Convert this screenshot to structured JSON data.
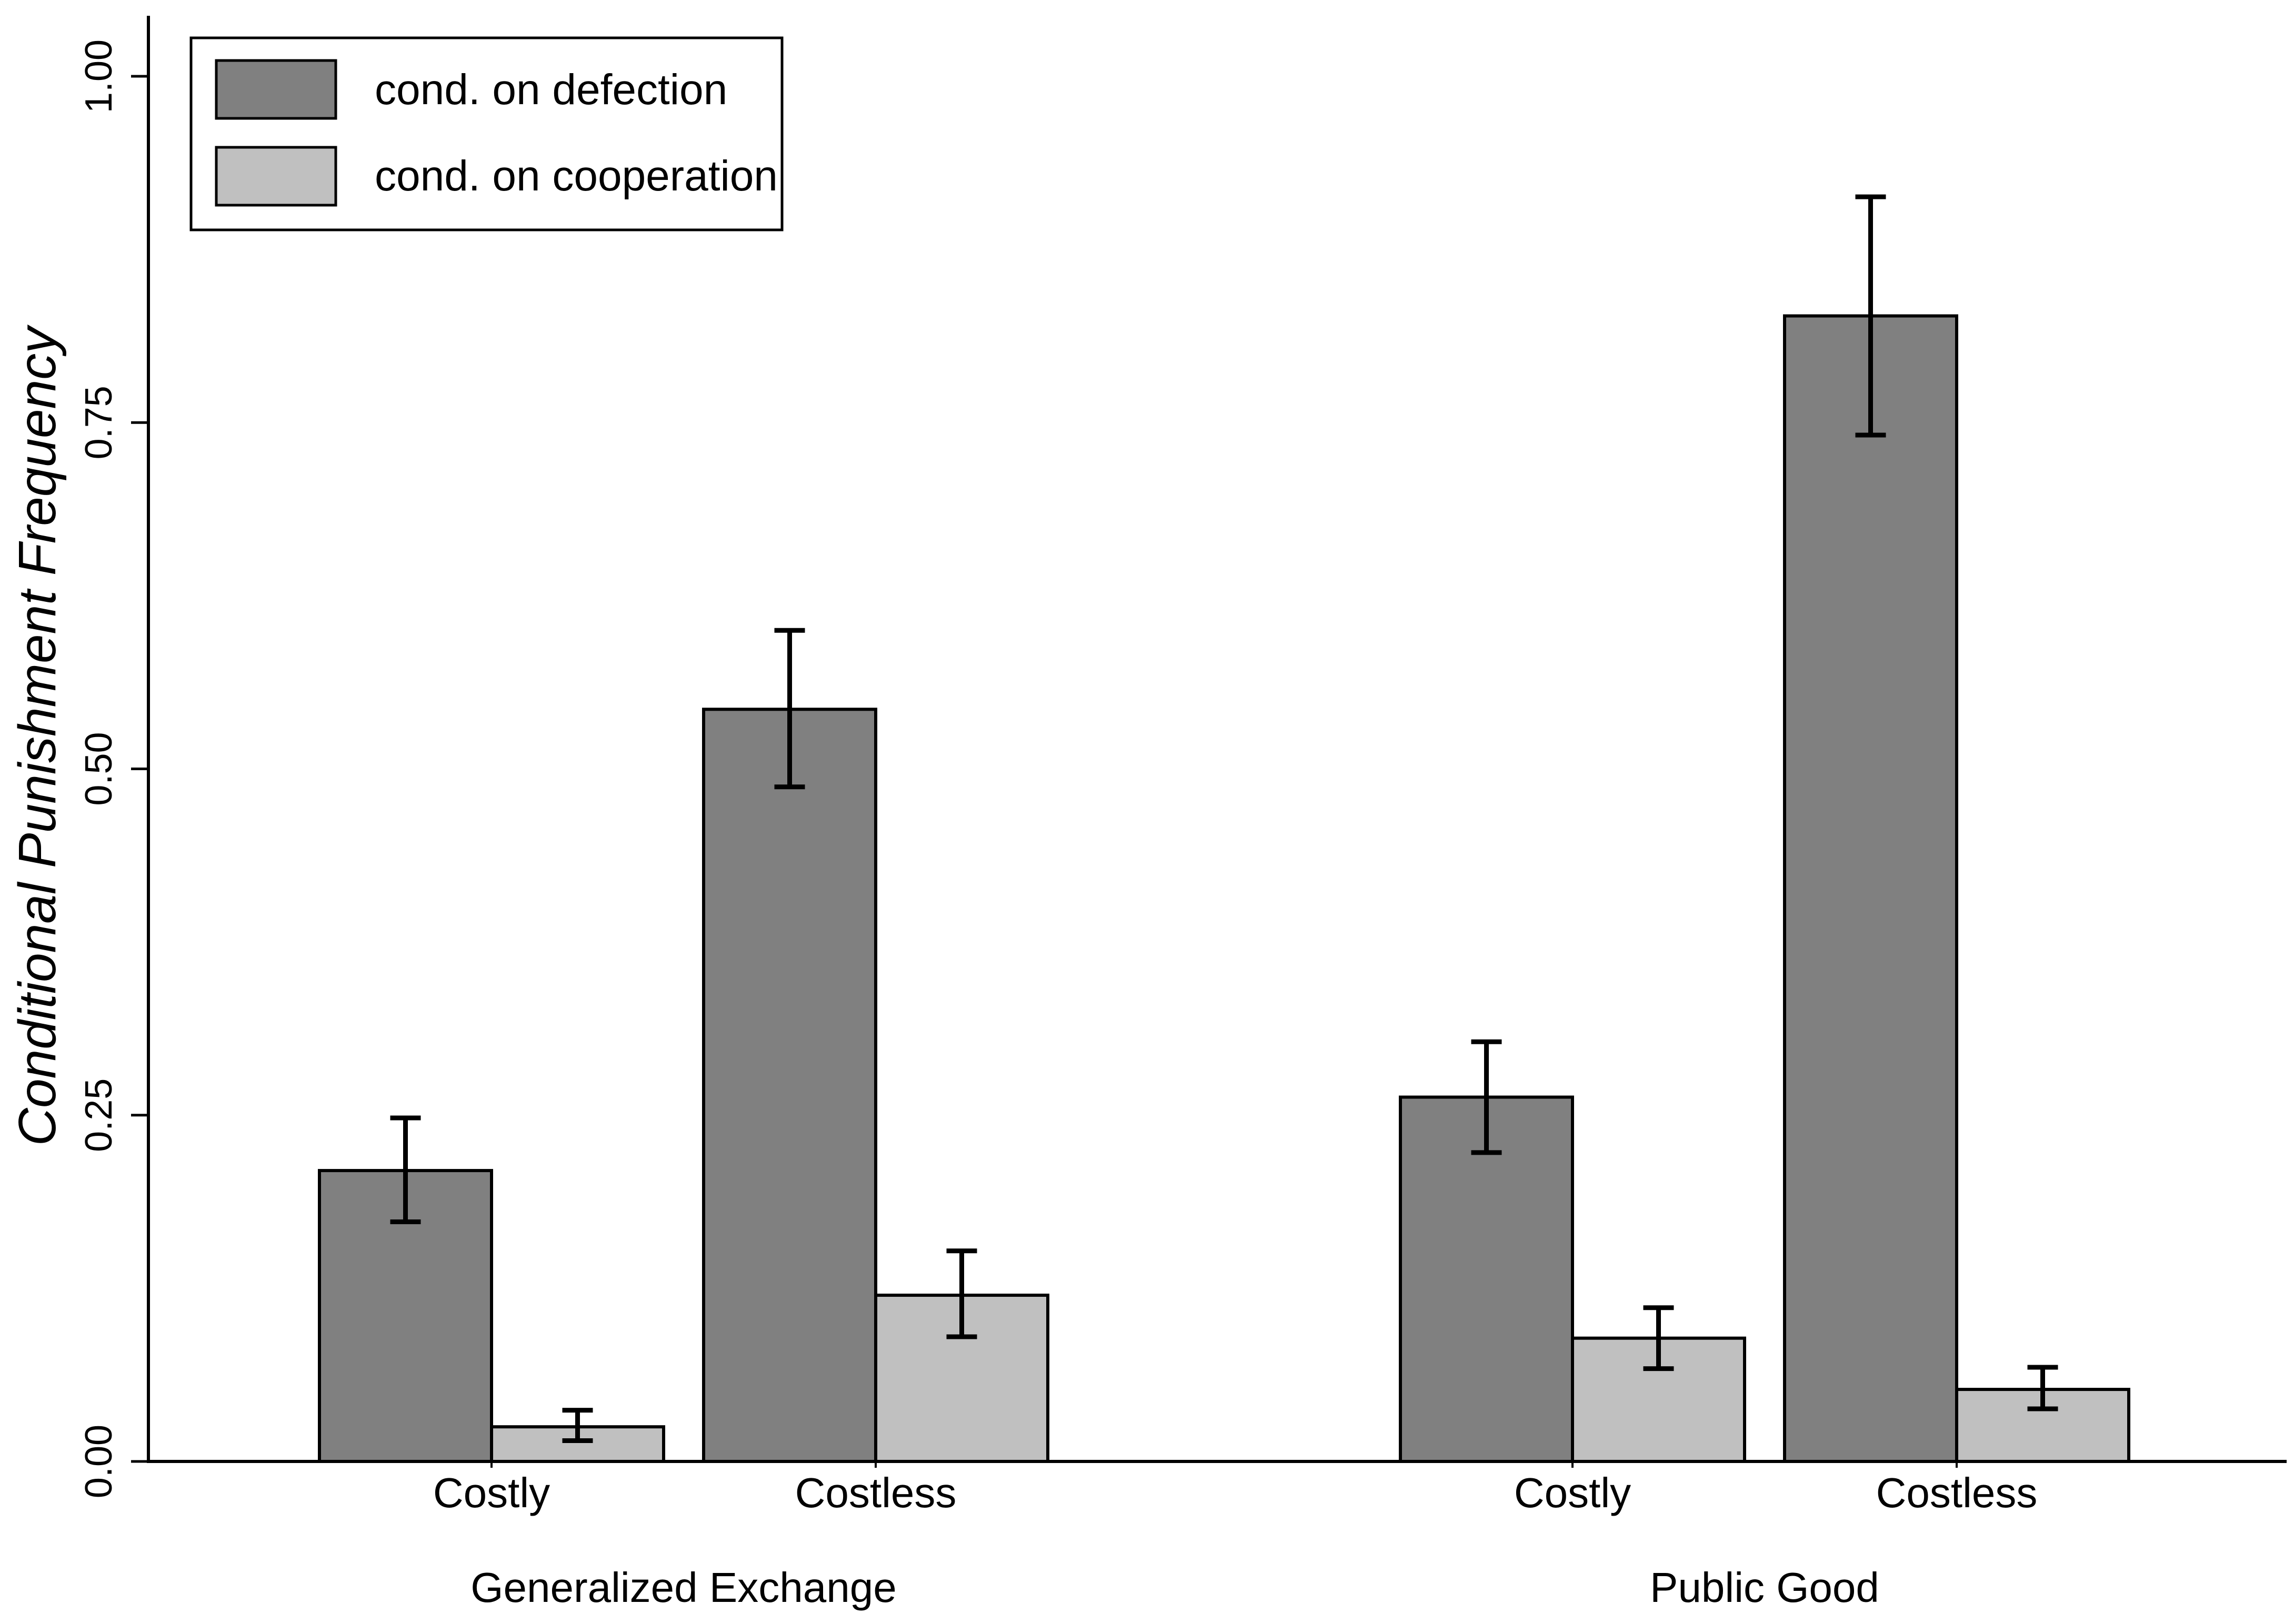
{
  "colors": {
    "defection": "#808080",
    "cooperation": "#c0c0c0",
    "axis": "#000000"
  },
  "chart_data": {
    "type": "bar",
    "title": "",
    "xlabel": "",
    "ylabel": "Conditional Punishment Frequency",
    "ylim": [
      0,
      1.0
    ],
    "yticks": [
      "0.00",
      "0.25",
      "0.50",
      "0.75",
      "1.00"
    ],
    "ytick_values": [
      0,
      0.25,
      0.5,
      0.75,
      1.0
    ],
    "legend_position": "top-left",
    "groups": [
      {
        "name": "Generalized Exchange",
        "categories": [
          "Costly",
          "Costless"
        ]
      },
      {
        "name": "Public Good",
        "categories": [
          "Costly",
          "Costless"
        ]
      }
    ],
    "series": [
      {
        "name": "cond. on defection",
        "values": [
          0.21,
          0.543,
          0.263,
          0.827
        ],
        "err_low": [
          0.173,
          0.487,
          0.223,
          0.741
        ],
        "err_high": [
          0.248,
          0.6,
          0.303,
          0.913
        ]
      },
      {
        "name": "cond. on cooperation",
        "values": [
          0.025,
          0.12,
          0.089,
          0.052
        ],
        "err_low": [
          0.015,
          0.09,
          0.067,
          0.038
        ],
        "err_high": [
          0.037,
          0.152,
          0.111,
          0.068
        ]
      }
    ]
  }
}
